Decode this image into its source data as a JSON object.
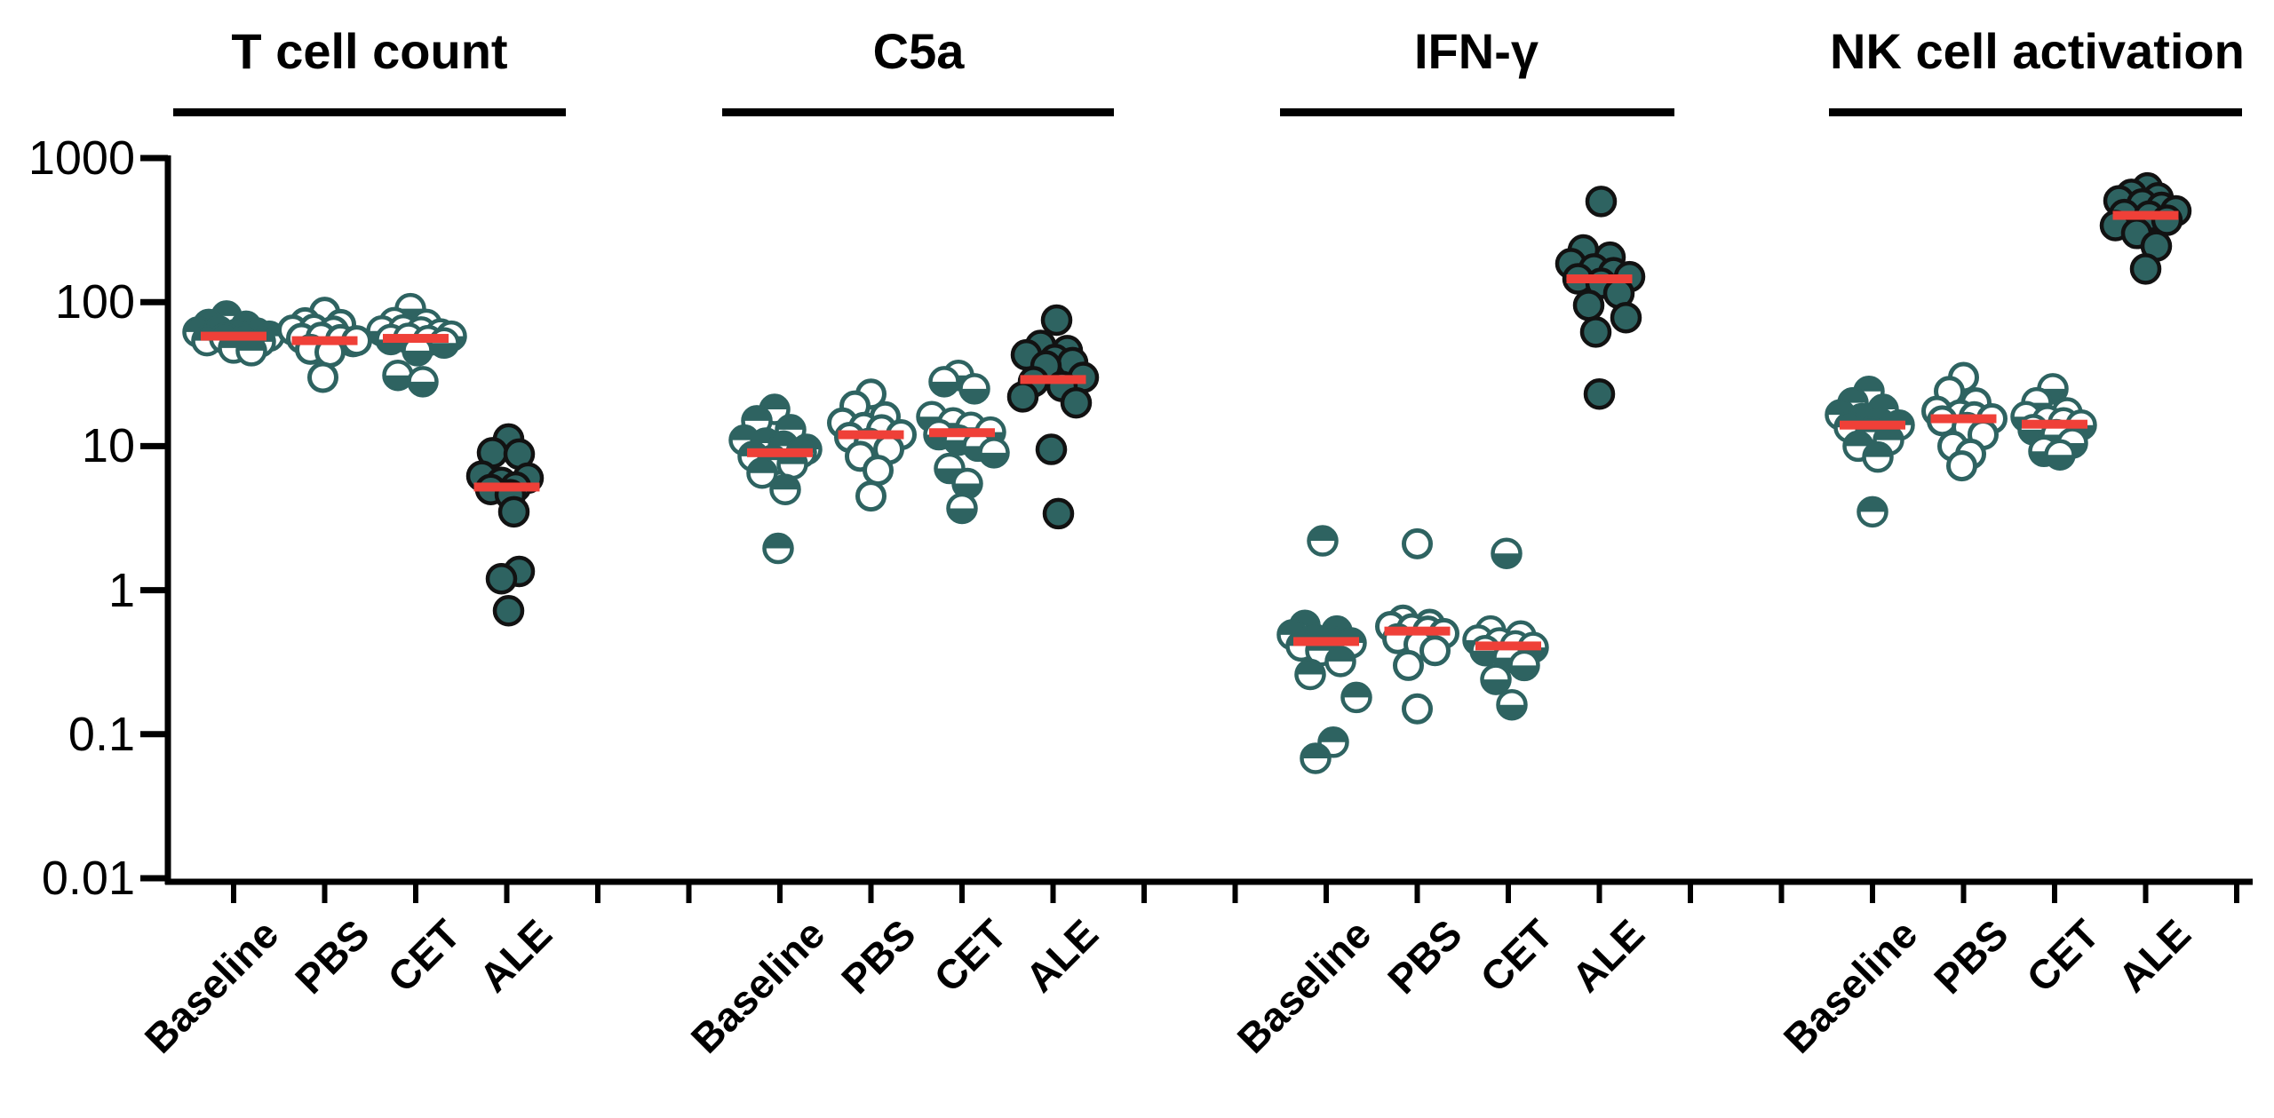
{
  "figure": {
    "kind": "grouped-scatter-dot-plot",
    "background": "#ffffff"
  },
  "chart_data": {
    "type": "scatter",
    "subtype": "column-scatter-with-median",
    "yscale": "log",
    "ylim": [
      0.01,
      1000
    ],
    "grid": "off",
    "y_ticks": [
      {
        "label": "1000",
        "value": 1000
      },
      {
        "label": "100",
        "value": 100
      },
      {
        "label": "10",
        "value": 10
      },
      {
        "label": "1",
        "value": 1
      },
      {
        "label": "0.1",
        "value": 0.1
      },
      {
        "label": "0.01",
        "value": 0.01
      }
    ],
    "groups": [
      "Baseline",
      "PBS",
      "CET",
      "ALE"
    ],
    "marker_styles": {
      "Baseline": "half-top-filled-circle",
      "PBS": "open-circle",
      "CET": "half-bottom-filled-circle",
      "ALE": "filled-circle-black-edge"
    },
    "colors": {
      "marker_teal": "#2e6361",
      "ale_edge": "#121212",
      "median_red": "#ef4038",
      "axis_black": "#000000"
    },
    "panels": [
      {
        "title": "T cell count",
        "groups": [
          {
            "name": "Baseline",
            "style": "half-top-filled-circle",
            "median": 58,
            "points": [
              [
                -8,
                80
              ],
              [
                -28,
                70
              ],
              [
                14,
                68
              ],
              [
                -40,
                62
              ],
              [
                -17,
                63
              ],
              [
                4,
                60
              ],
              [
                26,
                61
              ],
              [
                40,
                58
              ],
              [
                -30,
                54
              ],
              [
                -10,
                56
              ],
              [
                12,
                55
              ],
              [
                30,
                53
              ],
              [
                0,
                48
              ],
              [
                20,
                46
              ]
            ]
          },
          {
            "name": "PBS",
            "style": "open-circle",
            "median": 54,
            "points": [
              [
                0,
                85
              ],
              [
                -22,
                72
              ],
              [
                18,
                70
              ],
              [
                -36,
                64
              ],
              [
                -12,
                65
              ],
              [
                10,
                63
              ],
              [
                32,
                53
              ],
              [
                -26,
                56
              ],
              [
                -4,
                57
              ],
              [
                18,
                55
              ],
              [
                36,
                54
              ],
              [
                -16,
                47
              ],
              [
                6,
                45
              ],
              [
                -2,
                30
              ]
            ]
          },
          {
            "name": "CET",
            "style": "half-bottom-filled-circle",
            "median": 56,
            "points": [
              [
                -6,
                90
              ],
              [
                -24,
                72
              ],
              [
                12,
                70
              ],
              [
                -38,
                63
              ],
              [
                -14,
                64
              ],
              [
                6,
                62
              ],
              [
                28,
                60
              ],
              [
                40,
                58
              ],
              [
                -28,
                55
              ],
              [
                -8,
                56
              ],
              [
                14,
                54
              ],
              [
                32,
                52
              ],
              [
                2,
                46
              ],
              [
                -20,
                31
              ],
              [
                8,
                28
              ]
            ]
          },
          {
            "name": "ALE",
            "style": "filled-circle-black-edge",
            "median": 5.2,
            "points": [
              [
                2,
                11.2
              ],
              [
                -16,
                9
              ],
              [
                14,
                8.8
              ],
              [
                -28,
                6.2
              ],
              [
                24,
                6.0
              ],
              [
                -6,
                5.6
              ],
              [
                10,
                5.2
              ],
              [
                -18,
                5.0
              ],
              [
                4,
                4.6
              ],
              [
                8,
                3.5
              ],
              [
                14,
                1.35
              ],
              [
                -6,
                1.2
              ],
              [
                2,
                0.72
              ]
            ]
          }
        ]
      },
      {
        "title": "C5a",
        "groups": [
          {
            "name": "Baseline",
            "style": "half-top-filled-circle",
            "median": 9,
            "points": [
              [
                -6,
                18
              ],
              [
                -26,
                15
              ],
              [
                12,
                13
              ],
              [
                -40,
                11
              ],
              [
                -16,
                10.5
              ],
              [
                4,
                10
              ],
              [
                30,
                9.5
              ],
              [
                24,
                9
              ],
              [
                -30,
                8.5
              ],
              [
                -8,
                8
              ],
              [
                14,
                7.5
              ],
              [
                -20,
                6.5
              ],
              [
                6,
                5
              ],
              [
                -2,
                1.95
              ]
            ]
          },
          {
            "name": "PBS",
            "style": "open-circle",
            "median": 12,
            "points": [
              [
                0,
                23
              ],
              [
                -18,
                19
              ],
              [
                16,
                16
              ],
              [
                -32,
                14.5
              ],
              [
                -8,
                13.5
              ],
              [
                12,
                13
              ],
              [
                34,
                12
              ],
              [
                -24,
                11.5
              ],
              [
                -2,
                10.5
              ],
              [
                20,
                9.5
              ],
              [
                -12,
                8.5
              ],
              [
                8,
                6.8
              ],
              [
                0,
                4.5
              ]
            ]
          },
          {
            "name": "CET",
            "style": "half-bottom-filled-circle",
            "median": 12.4,
            "points": [
              [
                -4,
                31
              ],
              [
                -20,
                28
              ],
              [
                14,
                25
              ],
              [
                -34,
                16
              ],
              [
                -10,
                14.5
              ],
              [
                10,
                13.5
              ],
              [
                32,
                12.5
              ],
              [
                -26,
                12
              ],
              [
                -4,
                11
              ],
              [
                18,
                10
              ],
              [
                36,
                9
              ],
              [
                -14,
                7
              ],
              [
                6,
                5.5
              ],
              [
                0,
                3.7
              ]
            ]
          },
          {
            "name": "ALE",
            "style": "filled-circle-black-edge",
            "median": 29,
            "points": [
              [
                4,
                75
              ],
              [
                -14,
                50
              ],
              [
                16,
                46
              ],
              [
                -30,
                43
              ],
              [
                2,
                40
              ],
              [
                22,
                38
              ],
              [
                -8,
                36
              ],
              [
                34,
                30
              ],
              [
                -22,
                28
              ],
              [
                10,
                26
              ],
              [
                -34,
                22
              ],
              [
                26,
                20
              ],
              [
                -2,
                9.5
              ],
              [
                6,
                3.4
              ]
            ]
          }
        ]
      },
      {
        "title": "IFN-γ",
        "groups": [
          {
            "name": "Baseline",
            "style": "half-top-filled-circle",
            "median": 0.44,
            "points": [
              [
                -4,
                2.2
              ],
              [
                -24,
                0.57
              ],
              [
                12,
                0.52
              ],
              [
                -38,
                0.49
              ],
              [
                -14,
                0.46
              ],
              [
                6,
                0.44
              ],
              [
                28,
                0.43
              ],
              [
                -28,
                0.41
              ],
              [
                -6,
                0.38
              ],
              [
                16,
                0.32
              ],
              [
                -18,
                0.26
              ],
              [
                34,
                0.18
              ],
              [
                8,
                0.088
              ],
              [
                -12,
                0.068
              ]
            ]
          },
          {
            "name": "PBS",
            "style": "open-circle",
            "median": 0.52,
            "points": [
              [
                0,
                2.1
              ],
              [
                -16,
                0.62
              ],
              [
                14,
                0.58
              ],
              [
                -30,
                0.56
              ],
              [
                -6,
                0.54
              ],
              [
                12,
                0.52
              ],
              [
                30,
                0.5
              ],
              [
                -22,
                0.46
              ],
              [
                2,
                0.42
              ],
              [
                20,
                0.38
              ],
              [
                -10,
                0.3
              ],
              [
                0,
                0.15
              ]
            ]
          },
          {
            "name": "CET",
            "style": "half-bottom-filled-circle",
            "median": 0.41,
            "points": [
              [
                -2,
                1.8
              ],
              [
                -20,
                0.52
              ],
              [
                14,
                0.48
              ],
              [
                -34,
                0.45
              ],
              [
                -10,
                0.43
              ],
              [
                8,
                0.41
              ],
              [
                28,
                0.4
              ],
              [
                -26,
                0.38
              ],
              [
                0,
                0.34
              ],
              [
                18,
                0.3
              ],
              [
                -14,
                0.24
              ],
              [
                4,
                0.16
              ]
            ]
          },
          {
            "name": "ALE",
            "style": "filled-circle-black-edge",
            "median": 145,
            "points": [
              [
                2,
                500
              ],
              [
                -18,
                230
              ],
              [
                12,
                205
              ],
              [
                -32,
                185
              ],
              [
                -6,
                170
              ],
              [
                16,
                160
              ],
              [
                34,
                150
              ],
              [
                -24,
                145
              ],
              [
                2,
                135
              ],
              [
                22,
                115
              ],
              [
                -12,
                95
              ],
              [
                30,
                78
              ],
              [
                -4,
                62
              ],
              [
                0,
                23
              ]
            ]
          }
        ]
      },
      {
        "title": "NK cell activation",
        "groups": [
          {
            "name": "Baseline",
            "style": "half-top-filled-circle",
            "median": 14,
            "points": [
              [
                -4,
                24
              ],
              [
                -22,
                20
              ],
              [
                12,
                18
              ],
              [
                -36,
                16.5
              ],
              [
                -12,
                15.5
              ],
              [
                8,
                14.5
              ],
              [
                30,
                14
              ],
              [
                -26,
                13.5
              ],
              [
                -2,
                12.5
              ],
              [
                18,
                11
              ],
              [
                -16,
                10
              ],
              [
                6,
                8.4
              ],
              [
                0,
                3.5
              ]
            ]
          },
          {
            "name": "PBS",
            "style": "open-circle",
            "median": 15.5,
            "points": [
              [
                0,
                30
              ],
              [
                -16,
                24
              ],
              [
                14,
                20
              ],
              [
                -30,
                17.5
              ],
              [
                -4,
                16.5
              ],
              [
                12,
                16
              ],
              [
                32,
                15.5
              ],
              [
                -24,
                15
              ],
              [
                4,
                13.5
              ],
              [
                22,
                12
              ],
              [
                -12,
                10
              ],
              [
                8,
                8.8
              ],
              [
                -2,
                7.3
              ]
            ]
          },
          {
            "name": "CET",
            "style": "half-bottom-filled-circle",
            "median": 14.2,
            "points": [
              [
                -2,
                25
              ],
              [
                -20,
                20
              ],
              [
                14,
                17
              ],
              [
                -32,
                16
              ],
              [
                -8,
                15
              ],
              [
                10,
                14.5
              ],
              [
                30,
                14
              ],
              [
                -24,
                13
              ],
              [
                2,
                12
              ],
              [
                20,
                10.5
              ],
              [
                -12,
                9.2
              ],
              [
                6,
                8.7
              ]
            ]
          },
          {
            "name": "ALE",
            "style": "filled-circle-black-edge",
            "median": 400,
            "points": [
              [
                2,
                620
              ],
              [
                -16,
                560
              ],
              [
                14,
                530
              ],
              [
                -30,
                505
              ],
              [
                -4,
                480
              ],
              [
                18,
                455
              ],
              [
                34,
                430
              ],
              [
                -24,
                405
              ],
              [
                4,
                395
              ],
              [
                24,
                370
              ],
              [
                -34,
                340
              ],
              [
                -10,
                300
              ],
              [
                12,
                245
              ],
              [
                0,
                170
              ]
            ]
          }
        ]
      }
    ]
  }
}
